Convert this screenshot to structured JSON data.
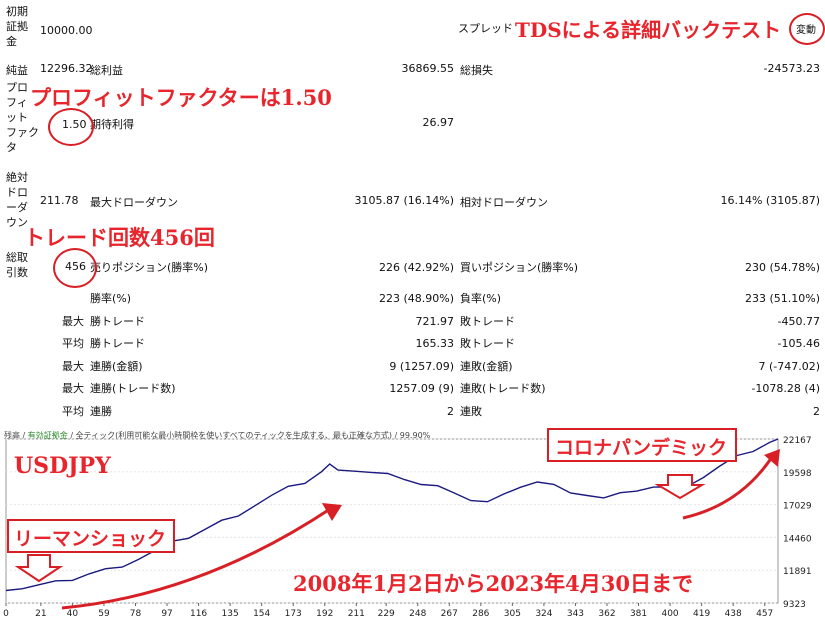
{
  "report": {
    "initial_deposit_label": "初期\n証拠\n金",
    "initial_deposit": "10000.00",
    "spread_label": "スプレッド",
    "spread_value": "変動",
    "net_profit_label": "純益",
    "net_profit": "12296.32",
    "gross_profit_label": "総利益",
    "gross_profit": "36869.55",
    "gross_loss_label": "総損失",
    "gross_loss": "-24573.23",
    "profit_factor_label": "プロ\nフィ\nット\nファク\nタ",
    "profit_factor": "1.50",
    "expected_payoff_label": "期待利得",
    "expected_payoff": "26.97",
    "abs_dd_label": "絶対\nドロ\nーダ\nウン",
    "abs_dd": "211.78",
    "max_dd_label": "最大ドローダウン",
    "max_dd": "3105.87 (16.14%)",
    "rel_dd_label": "相対ドローダウン",
    "rel_dd": "16.14% (3105.87)",
    "total_trades_label": "総取\n引数",
    "total_trades": "456",
    "short_label": "売りポジション(勝率%)",
    "short_value": "226 (42.92%)",
    "long_label": "買いポジション(勝率%)",
    "long_value": "230 (54.78%)",
    "win_rate_label": "勝率(%)",
    "win_rate_value": "223 (48.90%)",
    "loss_rate_label": "負率(%)",
    "loss_rate_value": "233 (51.10%)",
    "rows": [
      {
        "prefix": "最大",
        "left_label": "勝トレード",
        "left_value": "721.97",
        "right_label": "敗トレード",
        "right_value": "-450.77"
      },
      {
        "prefix": "平均",
        "left_label": "勝トレード",
        "left_value": "165.33",
        "right_label": "敗トレード",
        "right_value": "-105.46"
      },
      {
        "prefix": "最大",
        "left_label": "連勝(金額)",
        "left_value": "9 (1257.09)",
        "right_label": "連敗(金額)",
        "right_value": "7 (-747.02)"
      },
      {
        "prefix": "最大",
        "left_label": "連勝(トレード数)",
        "left_value": "1257.09 (9)",
        "right_label": "連敗(トレード数)",
        "right_value": "-1078.28 (4)"
      },
      {
        "prefix": "平均",
        "left_label": "連勝",
        "left_value": "2",
        "right_label": "連敗",
        "right_value": "2"
      }
    ]
  },
  "annotations": {
    "title": "TDSによる詳細バックテスト",
    "pf": "プロフィットファクターは1.50",
    "trades": "トレード回数456回",
    "covid": "コロナパンデミック",
    "lehman": "リーマンショック",
    "symbol": "USDJPY",
    "period": "2008年1月2日から2023年4月30日まで"
  },
  "chart_legend": {
    "balance": "残高",
    "equity": "有効証拠金",
    "mode": "全ティック(利用可能な最小時間枠を使いすべてのティックを生成する、最も正確な方式)",
    "quality": "99.90%"
  },
  "chart_data": {
    "type": "line",
    "title": "",
    "xlabel": "",
    "ylabel": "",
    "x_ticks": [
      "0",
      "21",
      "40",
      "59",
      "78",
      "97",
      "116",
      "135",
      "154",
      "173",
      "192",
      "211",
      "229",
      "248",
      "267",
      "286",
      "305",
      "324",
      "343",
      "362",
      "381",
      "400",
      "419",
      "438",
      "457"
    ],
    "y_ticks": [
      "22167",
      "19598",
      "17029",
      "14460",
      "11891",
      "9323"
    ],
    "ylim": [
      9323,
      22167
    ],
    "xlim": [
      0,
      465
    ],
    "series": [
      {
        "color": "#1a1a80",
        "x": [
          0,
          10,
          20,
          30,
          40,
          50,
          60,
          70,
          80,
          90,
          100,
          110,
          120,
          130,
          140,
          150,
          160,
          170,
          180,
          190,
          195,
          200,
          210,
          220,
          230,
          240,
          250,
          260,
          270,
          280,
          290,
          300,
          310,
          320,
          330,
          340,
          350,
          360,
          370,
          380,
          390,
          400,
          410,
          420,
          430,
          440,
          450,
          460,
          465
        ],
        "y": [
          10300,
          10500,
          10700,
          10900,
          11200,
          11600,
          11900,
          12300,
          12800,
          13400,
          14000,
          14500,
          15100,
          15700,
          16300,
          17000,
          17700,
          18300,
          18800,
          19600,
          20100,
          19900,
          19700,
          19500,
          19300,
          19100,
          18600,
          18400,
          18100,
          17400,
          17200,
          17700,
          18500,
          18800,
          18500,
          18100,
          17800,
          17500,
          17800,
          18200,
          18400,
          18300,
          18600,
          19200,
          20000,
          20700,
          21300,
          21900,
          22167
        ]
      }
    ]
  }
}
